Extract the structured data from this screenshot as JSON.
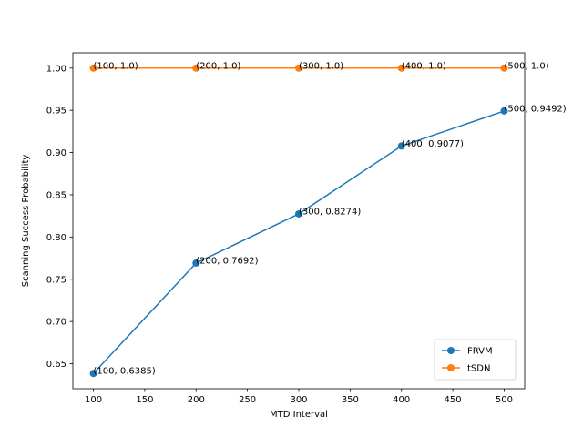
{
  "chart_data": {
    "type": "line",
    "title": "",
    "xlabel": "MTD Interval",
    "ylabel": "Scanning Success Probability",
    "x": [
      100,
      200,
      300,
      400,
      500
    ],
    "xticks": [
      100,
      150,
      200,
      250,
      300,
      350,
      400,
      450,
      500
    ],
    "yticks": [
      0.65,
      0.7,
      0.75,
      0.8,
      0.85,
      0.9,
      0.95,
      1.0
    ],
    "ytick_labels": [
      "0.65",
      "0.70",
      "0.75",
      "0.80",
      "0.85",
      "0.90",
      "0.95",
      "1.00"
    ],
    "xlim": [
      80,
      520
    ],
    "ylim": [
      0.6204,
      1.0181
    ],
    "grid": false,
    "legend_position": "lower right",
    "series": [
      {
        "name": "FRVM",
        "color": "#1f77b4",
        "marker": "circle",
        "values": [
          0.6385,
          0.7692,
          0.8274,
          0.9077,
          0.9492
        ],
        "labels": [
          "(100, 0.6385)",
          "(200, 0.7692)",
          "(300, 0.8274)",
          "(400, 0.9077)",
          "(500, 0.9492)"
        ]
      },
      {
        "name": "tSDN",
        "color": "#ff7f0e",
        "marker": "circle",
        "values": [
          1.0,
          1.0,
          1.0,
          1.0,
          1.0
        ],
        "labels": [
          "(100, 1.0)",
          "(200, 1.0)",
          "(300, 1.0)",
          "(400, 1.0)",
          "(500, 1.0)"
        ]
      }
    ]
  }
}
